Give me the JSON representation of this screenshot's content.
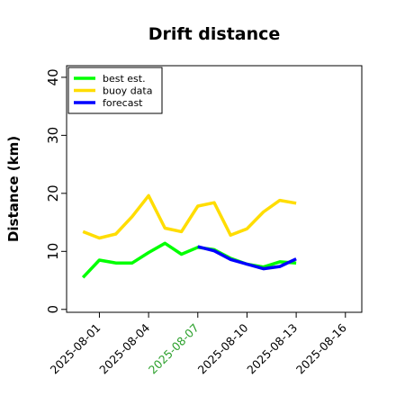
{
  "chart_data": {
    "type": "line",
    "title": "Drift distance",
    "xlabel": "",
    "ylabel": "Distance (km)",
    "ylim": [
      -0.5,
      42
    ],
    "xlim": [
      "2025-07-30",
      "2025-08-17"
    ],
    "yticks": [
      0,
      10,
      20,
      30,
      40
    ],
    "xticks": [
      {
        "label": "2025-08-01",
        "color": "#000000"
      },
      {
        "label": "2025-08-04",
        "color": "#000000"
      },
      {
        "label": "2025-08-07",
        "color": "#2ca02c"
      },
      {
        "label": "2025-08-10",
        "color": "#000000"
      },
      {
        "label": "2025-08-13",
        "color": "#000000"
      },
      {
        "label": "2025-08-16",
        "color": "#000000"
      }
    ],
    "grid": false,
    "legend_position": "top-left",
    "series": [
      {
        "name": "best est.",
        "color": "#00ff00",
        "x": [
          "2025-07-31",
          "2025-08-01",
          "2025-08-02",
          "2025-08-03",
          "2025-08-04",
          "2025-08-05",
          "2025-08-06",
          "2025-08-07",
          "2025-08-08",
          "2025-08-09",
          "2025-08-10",
          "2025-08-11",
          "2025-08-12",
          "2025-08-13"
        ],
        "y": [
          5.5,
          8.5,
          8.0,
          8.0,
          9.8,
          11.4,
          9.5,
          10.7,
          10.3,
          8.8,
          7.8,
          7.3,
          8.2,
          8.0
        ]
      },
      {
        "name": "buoy data",
        "color": "#ffdd00",
        "x": [
          "2025-07-31",
          "2025-08-01",
          "2025-08-02",
          "2025-08-03",
          "2025-08-04",
          "2025-08-05",
          "2025-08-06",
          "2025-08-07",
          "2025-08-08",
          "2025-08-09",
          "2025-08-10",
          "2025-08-11",
          "2025-08-12",
          "2025-08-13"
        ],
        "y": [
          13.4,
          12.3,
          13.0,
          16.0,
          19.6,
          14.0,
          13.4,
          17.8,
          18.4,
          12.8,
          13.9,
          16.8,
          18.8,
          18.3
        ]
      },
      {
        "name": "forecast",
        "color": "#0000ff",
        "x": [
          "2025-08-07",
          "2025-08-08",
          "2025-08-09",
          "2025-08-10",
          "2025-08-11",
          "2025-08-12",
          "2025-08-13"
        ],
        "y": [
          10.8,
          10.1,
          8.6,
          7.8,
          7.0,
          7.4,
          8.7
        ]
      }
    ]
  }
}
